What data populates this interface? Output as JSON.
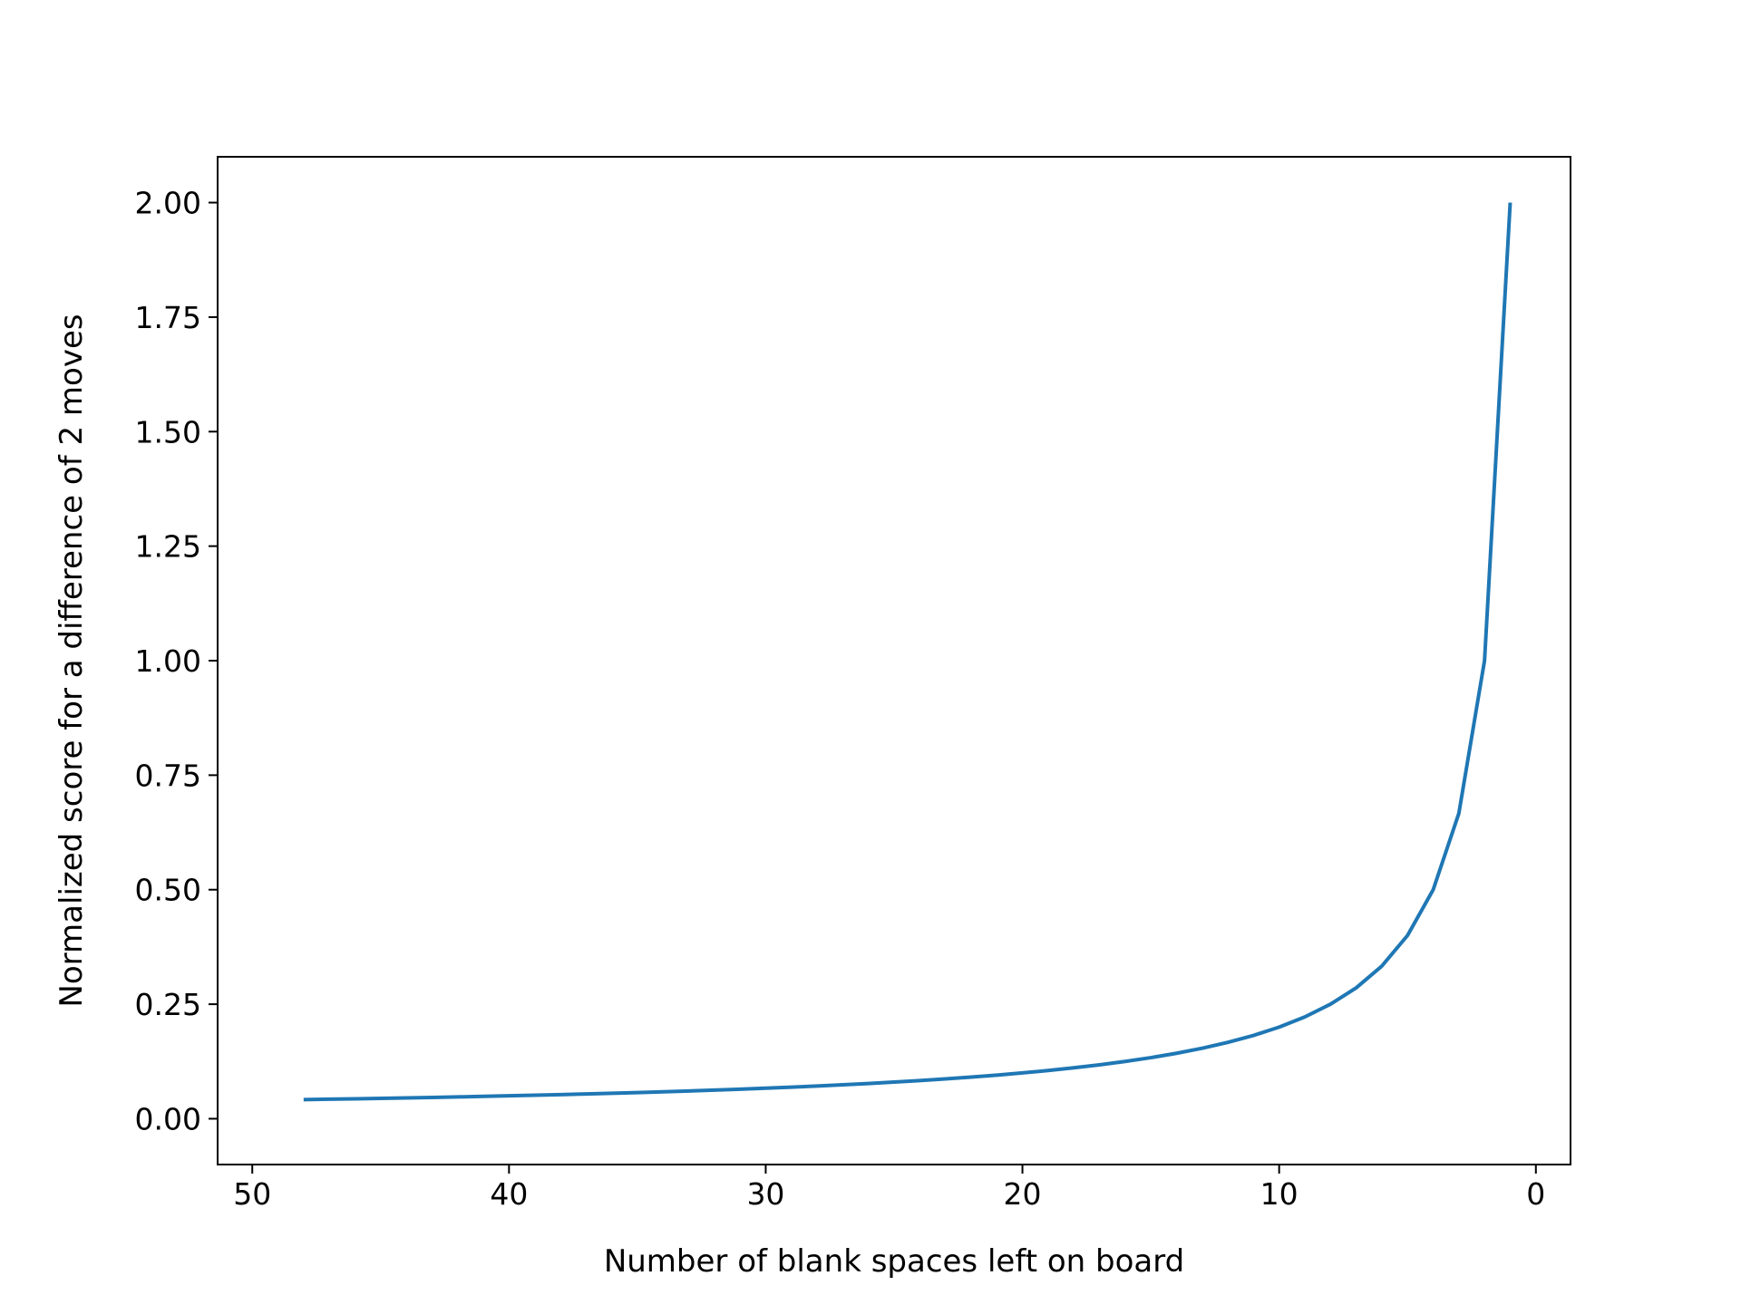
{
  "chart_data": {
    "type": "line",
    "title": "",
    "xlabel": "Number of blank spaces left on board",
    "ylabel": "Normalized score for a difference of 2 moves",
    "xlim": [
      51.35,
      -1.35
    ],
    "ylim": [
      -0.1,
      2.1
    ],
    "x_inverted": true,
    "grid": false,
    "legend": "none",
    "xticks": [
      50,
      40,
      30,
      20,
      10,
      0
    ],
    "xtick_labels": [
      "50",
      "40",
      "30",
      "20",
      "10",
      "0"
    ],
    "yticks": [
      0,
      0.25,
      0.5,
      0.75,
      1.0,
      1.25,
      1.5,
      1.75,
      2.0
    ],
    "ytick_labels": [
      "0.00",
      "0.25",
      "0.50",
      "0.75",
      "1.00",
      "1.25",
      "1.50",
      "1.75",
      "2.00"
    ],
    "series": [
      {
        "color": "#1f77b4",
        "x": [
          48,
          47,
          46,
          45,
          44,
          43,
          42,
          41,
          40,
          39,
          38,
          37,
          36,
          35,
          34,
          33,
          32,
          31,
          30,
          29,
          28,
          27,
          26,
          25,
          24,
          23,
          22,
          21,
          20,
          19,
          18,
          17,
          16,
          15,
          14,
          13,
          12,
          11,
          10,
          9,
          8,
          7,
          6,
          5,
          4,
          3,
          2,
          1
        ],
        "values": [
          0.0417,
          0.0426,
          0.0435,
          0.0444,
          0.0455,
          0.0465,
          0.0476,
          0.0488,
          0.05,
          0.0513,
          0.0526,
          0.0541,
          0.0556,
          0.0571,
          0.0588,
          0.0606,
          0.0625,
          0.0645,
          0.0667,
          0.069,
          0.0714,
          0.0741,
          0.0769,
          0.08,
          0.0833,
          0.087,
          0.0909,
          0.0952,
          0.1,
          0.1053,
          0.1111,
          0.1176,
          0.125,
          0.1333,
          0.1429,
          0.1538,
          0.1667,
          0.1818,
          0.2,
          0.2222,
          0.25,
          0.2857,
          0.3333,
          0.4,
          0.5,
          0.6667,
          1.0,
          2.0
        ]
      }
    ]
  }
}
